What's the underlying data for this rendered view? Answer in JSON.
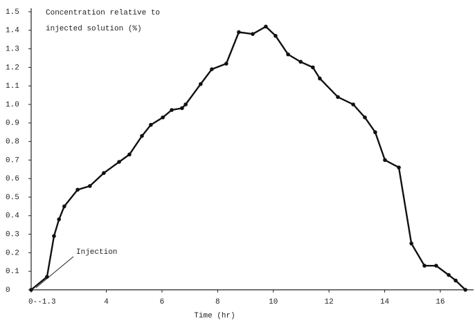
{
  "chart_data": {
    "type": "line",
    "ylabel": [
      "Concentration relative to",
      "injected solution (%)"
    ],
    "xlabel": "Time (hr)",
    "annotation": "Injection",
    "color": "#111111",
    "x": [
      1.3,
      1.87,
      2.12,
      2.3,
      2.49,
      2.97,
      3.41,
      3.91,
      4.46,
      4.83,
      5.28,
      5.6,
      6.03,
      6.35,
      6.72,
      6.85,
      7.39,
      7.79,
      8.31,
      8.76,
      9.26,
      9.73,
      10.08,
      10.53,
      10.98,
      11.42,
      11.67,
      12.32,
      12.87,
      13.29,
      13.66,
      14.01,
      14.51,
      14.96,
      15.43,
      15.85,
      16.3,
      16.55,
      16.9
    ],
    "values": [
      0,
      0.07,
      0.29,
      0.38,
      0.45,
      0.54,
      0.56,
      0.63,
      0.69,
      0.73,
      0.83,
      0.89,
      0.93,
      0.97,
      0.98,
      1.0,
      1.11,
      1.19,
      1.22,
      1.39,
      1.38,
      1.42,
      1.37,
      1.27,
      1.23,
      1.2,
      1.14,
      1.04,
      1.0,
      0.93,
      0.85,
      0.7,
      0.66,
      0.25,
      0.13,
      0.13,
      0.08,
      0.05,
      0
    ],
    "xlim": [
      1.3,
      17.2
    ],
    "ylim": [
      0,
      1.5
    ],
    "xticks": [
      {
        "value": 1.3,
        "label": "0--1.3"
      },
      4,
      6,
      8,
      10,
      12,
      14,
      16
    ],
    "yticks": [
      0,
      0.1,
      0.2,
      0.3,
      0.4,
      0.5,
      0.6,
      0.7,
      0.8,
      0.9,
      {
        "value": 1,
        "label": "1.0"
      },
      1.1,
      1.2,
      1.3,
      1.4,
      1.5
    ],
    "grid": false
  }
}
